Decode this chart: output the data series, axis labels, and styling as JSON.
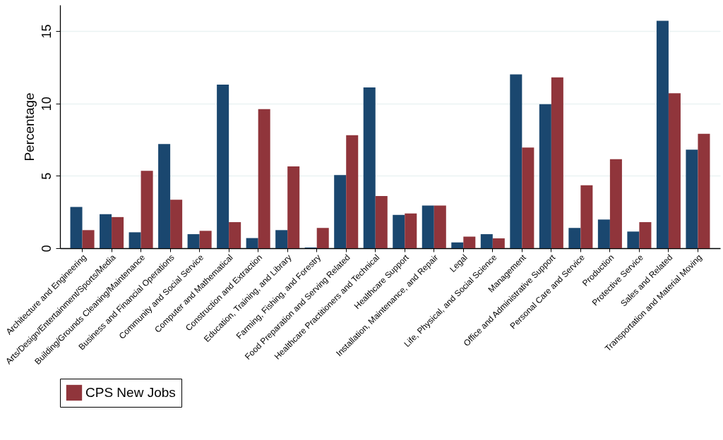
{
  "chart_data": {
    "type": "bar",
    "ylabel": "Percentage",
    "categories": [
      "Architecture and Engineering",
      "Arts/Design/Entertainment/Sports/Media",
      "Building/Grounds Cleaning/Maintenance",
      "Business and Financial Operations",
      "Community and Social Service",
      "Computer and Mathematical",
      "Construction and Extraction",
      "Education, Training, and Library",
      "Farming, Fishing, and Forestry",
      "Food Preparation and Serving Related",
      "Healthcare Practitioners and Technical",
      "Healthcare Support",
      "Installation, Maintenance, and Repair",
      "Legal",
      "Life, Physical, and Social Science",
      "Management",
      "Office and Administrative Support",
      "Personal Care and Service",
      "Production",
      "Protective Service",
      "Sales and Related",
      "Transportation and Material Moving"
    ],
    "series": [
      {
        "color": "#1a476f",
        "values": [
          2.85,
          2.35,
          1.1,
          7.2,
          0.97,
          11.3,
          0.7,
          1.25,
          0.05,
          5.05,
          11.1,
          2.3,
          2.95,
          0.4,
          0.97,
          12.0,
          9.95,
          1.4,
          1.98,
          1.15,
          15.7,
          6.8
        ]
      },
      {
        "name": "CPS New Jobs",
        "color": "#90353b",
        "values": [
          1.25,
          2.15,
          5.35,
          3.35,
          1.2,
          1.8,
          9.6,
          5.65,
          1.4,
          7.8,
          3.6,
          2.4,
          2.95,
          0.8,
          0.68,
          6.95,
          11.8,
          4.35,
          6.15,
          1.8,
          10.7,
          7.9
        ]
      }
    ],
    "ylim": [
      0,
      16.8
    ],
    "yticks": [
      0,
      5,
      10,
      15
    ],
    "grid": "y",
    "legend": "bottom"
  }
}
